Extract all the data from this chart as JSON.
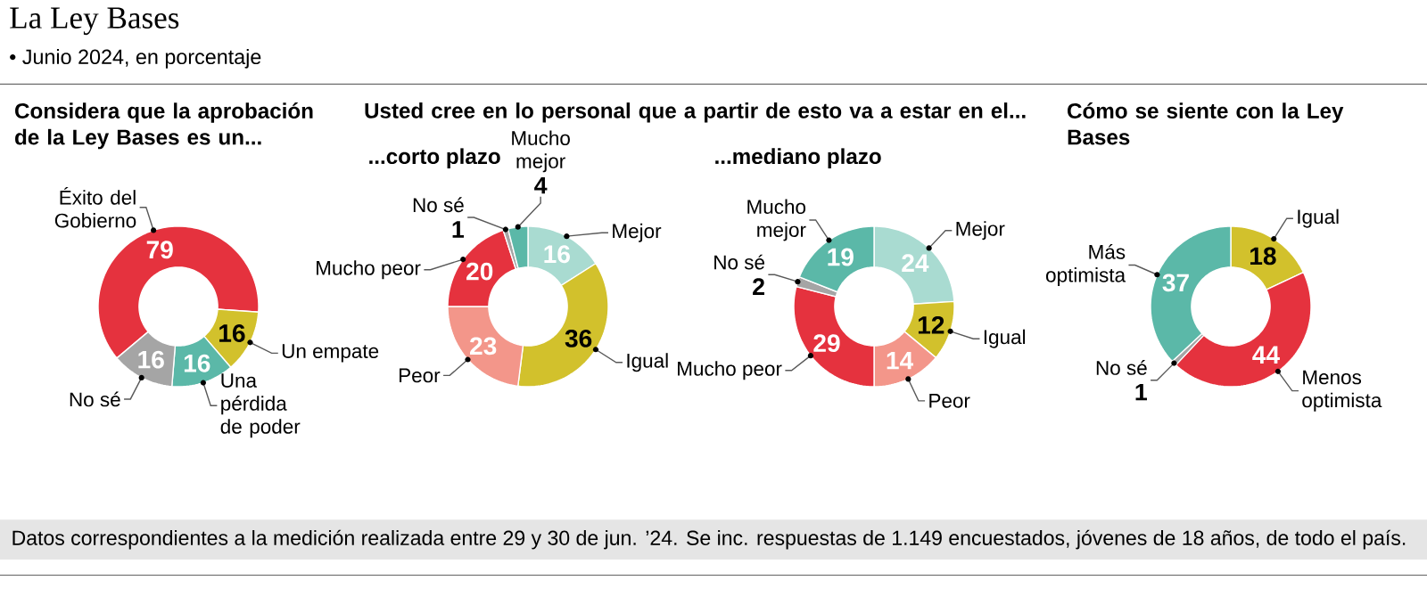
{
  "chart_data": [
    {
      "type": "other",
      "title": "La Ley Bases",
      "subtitle": "• Junio 2024, en porcentaje",
      "annotations": [
        "Datos correspondientes a la medición realizada entre 29 y 30 de jun. ’24.  Se inc. respuestas de 1.149 encuestados, jóvenes de 18 años, de todo el país."
      ]
    },
    {
      "type": "donut",
      "title": "Considera que la aprobación de la Ley Bases es un...",
      "categories": [
        "Éxito del Gobierno",
        "Un empate",
        "Una pérdida de poder",
        "No sé"
      ],
      "values": [
        79,
        16,
        16,
        16
      ],
      "colors": [
        "#e5323e",
        "#d2c12c",
        "#5bb8a8",
        "#a5a5a5"
      ],
      "data_labels": true
    },
    {
      "type": "donut",
      "title": "Usted cree en lo personal que a partir de esto va a estar en el...",
      "subtitle": "...corto plazo",
      "categories": [
        "Mejor",
        "Igual",
        "Peor",
        "Mucho peor",
        "No sé",
        "Mucho mejor"
      ],
      "values": [
        16,
        36,
        23,
        20,
        1,
        4
      ],
      "colors": [
        "#a9dbd1",
        "#d2c12c",
        "#f3968a",
        "#e5323e",
        "#a5a5a5",
        "#5bb8a8"
      ],
      "data_labels": true
    },
    {
      "type": "donut",
      "subtitle": "...mediano plazo",
      "categories": [
        "Mejor",
        "Igual",
        "Peor",
        "Mucho peor",
        "No sé",
        "Mucho mejor"
      ],
      "values": [
        24,
        12,
        14,
        29,
        2,
        19
      ],
      "colors": [
        "#a9dbd1",
        "#d2c12c",
        "#f3968a",
        "#e5323e",
        "#a5a5a5",
        "#5bb8a8"
      ],
      "data_labels": true
    },
    {
      "type": "donut",
      "title": "Cómo se siente con la Ley Bases",
      "categories": [
        "Igual",
        "Menos optimista",
        "No sé",
        "Más optimista"
      ],
      "values": [
        18,
        44,
        1,
        37
      ],
      "colors": [
        "#d2c12c",
        "#e5323e",
        "#a5a5a5",
        "#5bb8a8"
      ],
      "data_labels": true
    }
  ]
}
